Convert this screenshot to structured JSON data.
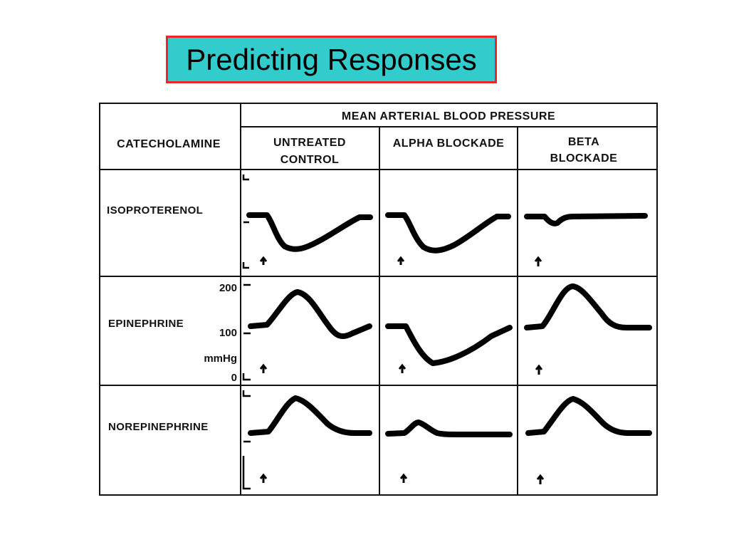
{
  "title": "Predicting Responses",
  "table": {
    "header_main": "MEAN ARTERIAL BLOOD PRESSURE",
    "row_header": "CATECHOLAMINE",
    "col_untreated": [
      "UNTREATED",
      "CONTROL"
    ],
    "col_alpha": "ALPHA BLOCKADE",
    "col_beta": [
      "BETA",
      "BLOCKADE"
    ],
    "rows": [
      "ISOPROTERENOL",
      "EPINEPHRINE",
      "NOREPINEPHRINE"
    ],
    "scale": {
      "top": "200",
      "mid": "100",
      "unit": "mmHg",
      "zero": "0"
    }
  },
  "colors": {
    "title_bg": "#33CCCC",
    "title_border": "#E8262B"
  }
}
